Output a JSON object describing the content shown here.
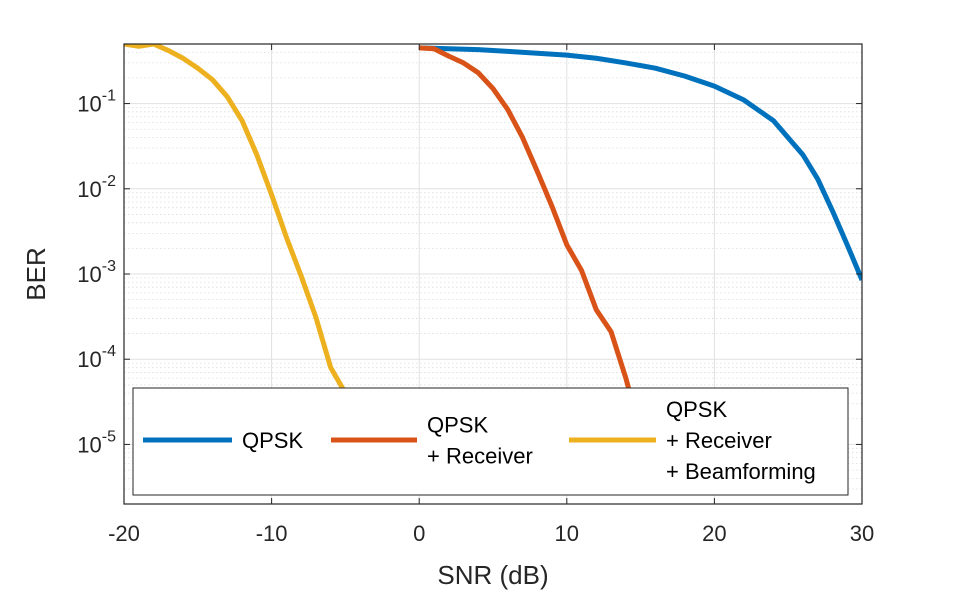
{
  "chart_data": {
    "type": "line",
    "xlabel": "SNR (dB)",
    "ylabel": "BER",
    "xlim": [
      -20,
      30
    ],
    "ylim": [
      2e-06,
      0.5
    ],
    "yscale": "log",
    "grid": true,
    "minor_grid": true,
    "legend_position": "bottom, inside, horizontal",
    "x_ticks": [
      -20,
      -10,
      0,
      10,
      20,
      30
    ],
    "x_tick_labels": [
      "-20",
      "-10",
      "0",
      "10",
      "20",
      "30"
    ],
    "y_ticks": [
      1e-05,
      0.0001,
      0.001,
      0.01,
      0.1
    ],
    "y_tick_labels": [
      {
        "base": "10",
        "exp": "-5"
      },
      {
        "base": "10",
        "exp": "-4"
      },
      {
        "base": "10",
        "exp": "-3"
      },
      {
        "base": "10",
        "exp": "-2"
      },
      {
        "base": "10",
        "exp": "-1"
      }
    ],
    "series": [
      {
        "name": "QPSK",
        "legend_lines": [
          "QPSK"
        ],
        "color": "#0072BD",
        "x": [
          0,
          2,
          4,
          6,
          8,
          10,
          12,
          14,
          16,
          18,
          20,
          22,
          24,
          26,
          27,
          28,
          29,
          30
        ],
        "y": [
          0.45,
          0.44,
          0.43,
          0.41,
          0.39,
          0.37,
          0.34,
          0.3,
          0.26,
          0.21,
          0.16,
          0.11,
          0.063,
          0.025,
          0.013,
          0.0055,
          0.0022,
          0.00085
        ]
      },
      {
        "name": "QPSK + Receiver",
        "legend_lines": [
          "QPSK",
          "+ Receiver"
        ],
        "color": "#D95319",
        "x": [
          0,
          1,
          2,
          3,
          4,
          5,
          6,
          7,
          8,
          9,
          10,
          11,
          12,
          13,
          14,
          14.6
        ],
        "y": [
          0.45,
          0.44,
          0.36,
          0.3,
          0.23,
          0.15,
          0.085,
          0.04,
          0.016,
          0.0062,
          0.0022,
          0.0011,
          0.00038,
          0.00021,
          6e-05,
          2.5e-05
        ]
      },
      {
        "name": "QPSK + Receiver + Beamforming",
        "legend_lines": [
          "QPSK",
          "+ Receiver",
          "+ Beamforming"
        ],
        "color": "#EDB120",
        "x": [
          -20,
          -19,
          -18,
          -17,
          -16,
          -15,
          -14,
          -13,
          -12,
          -11,
          -10,
          -9,
          -8,
          -7,
          -6,
          -5
        ],
        "y": [
          0.5,
          0.47,
          0.5,
          0.42,
          0.34,
          0.26,
          0.19,
          0.12,
          0.063,
          0.025,
          0.0085,
          0.0027,
          0.00095,
          0.00031,
          8e-05,
          4e-05
        ]
      }
    ]
  }
}
